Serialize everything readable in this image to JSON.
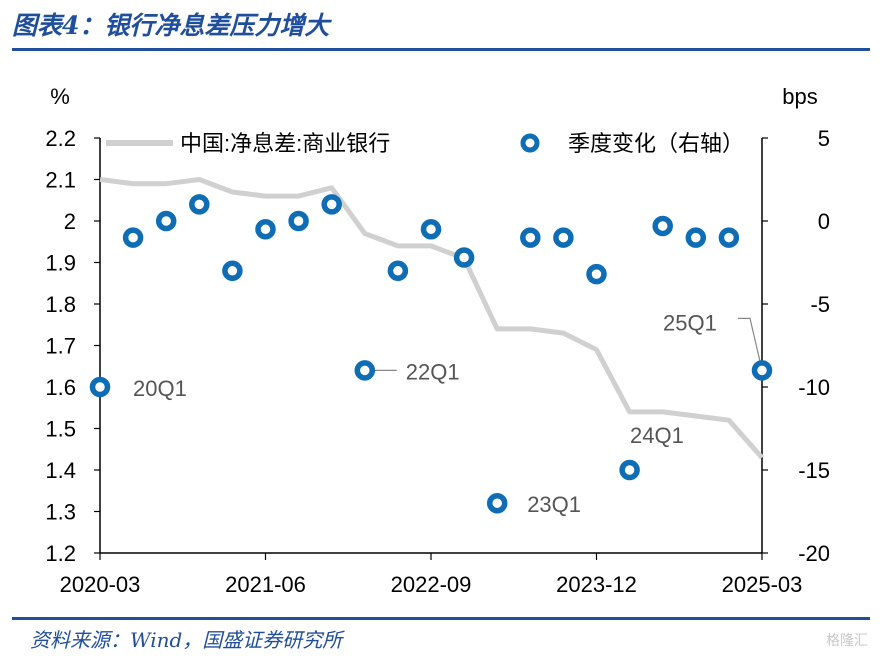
{
  "header": {
    "title": "图表4：银行净息差压力增大"
  },
  "footer": {
    "source": "资料来源：Wind，国盛证券研究所",
    "watermark": "格隆汇"
  },
  "chart_data": {
    "type": "line",
    "left_unit": "%",
    "right_unit": "bps",
    "x_ticks": [
      "2020-03",
      "2021-06",
      "2022-09",
      "2023-12",
      "2025-03"
    ],
    "quarters": [
      "2020Q1",
      "2020Q2",
      "2020Q3",
      "2020Q4",
      "2021Q1",
      "2021Q2",
      "2021Q3",
      "2021Q4",
      "2022Q1",
      "2022Q2",
      "2022Q3",
      "2022Q4",
      "2023Q1",
      "2023Q2",
      "2023Q3",
      "2023Q4",
      "2024Q1",
      "2024Q2",
      "2024Q3",
      "2024Q4",
      "2025Q1"
    ],
    "ylim_left": [
      1.2,
      2.2
    ],
    "yticks_left": [
      "1.2",
      "1.3",
      "1.4",
      "1.5",
      "1.6",
      "1.7",
      "1.8",
      "1.9",
      "2",
      "2.1",
      "2.2"
    ],
    "ylim_right": [
      -20,
      5
    ],
    "yticks_right": [
      "-20",
      "-15",
      "-10",
      "-5",
      "0",
      "5"
    ],
    "legend": {
      "placement": "top",
      "entries": [
        "中国:净息差:商业银行",
        "季度变化（右轴）"
      ]
    },
    "colors": {
      "line": "#d0d0d0",
      "marker": "#0e6db5",
      "axis": "#000000",
      "annotation": "#555555"
    },
    "series": [
      {
        "name": "中国:净息差:商业银行",
        "axis": "left",
        "kind": "line",
        "values": [
          2.1,
          2.09,
          2.09,
          2.1,
          2.07,
          2.06,
          2.06,
          2.08,
          1.97,
          1.94,
          1.94,
          1.91,
          1.74,
          1.74,
          1.73,
          1.69,
          1.54,
          1.54,
          1.53,
          1.52,
          1.43
        ]
      },
      {
        "name": "季度变化（右轴）",
        "axis": "right",
        "kind": "scatter",
        "values": [
          -10,
          -1,
          0,
          1,
          -3,
          -0.5,
          0,
          1,
          -9,
          -3,
          -0.5,
          -2.2,
          -17,
          -1,
          -1,
          -3.2,
          -15,
          -0.3,
          -1,
          -1,
          -9
        ]
      }
    ],
    "annotations": [
      {
        "text": "20Q1",
        "index": 0
      },
      {
        "text": "22Q1",
        "index": 8
      },
      {
        "text": "23Q1",
        "index": 12
      },
      {
        "text": "24Q1",
        "index": 16
      },
      {
        "text": "25Q1",
        "index": 20
      }
    ]
  }
}
